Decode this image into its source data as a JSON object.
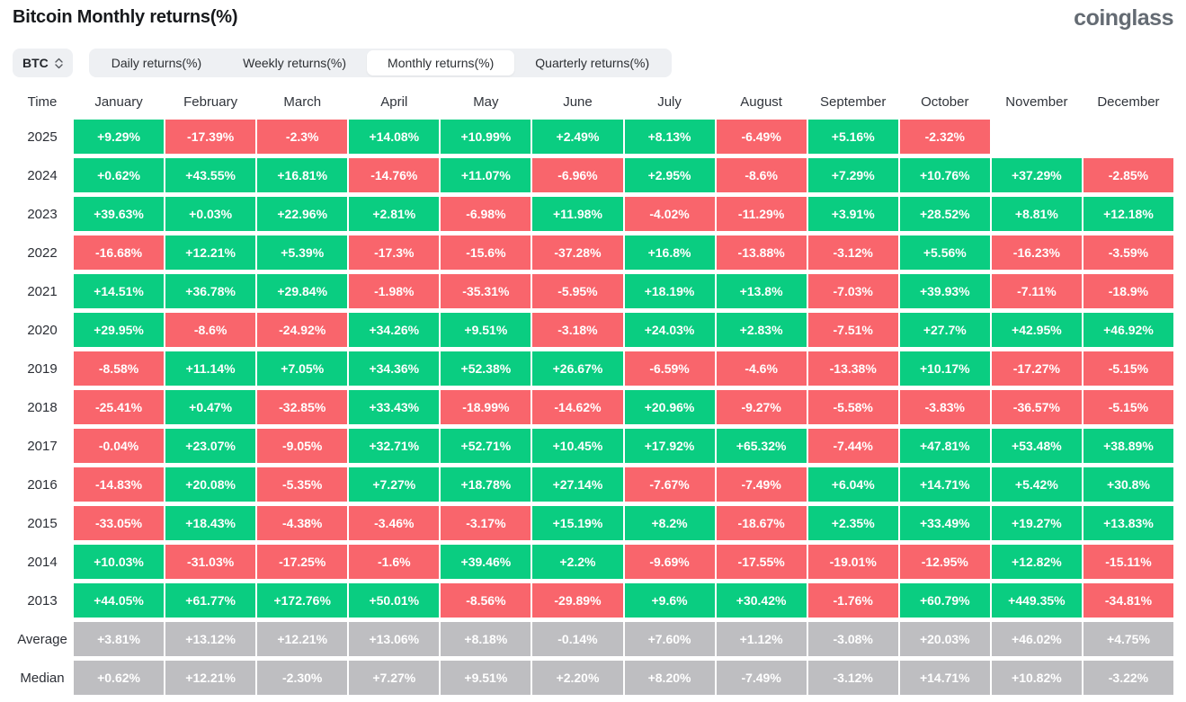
{
  "header": {
    "title": "Bitcoin Monthly returns(%)",
    "logo_text": "coinglass"
  },
  "controls": {
    "symbol_select": {
      "value": "BTC",
      "icon": "updown-chevron-icon"
    },
    "tabs": [
      {
        "label": "Daily returns(%)",
        "active": false
      },
      {
        "label": "Weekly returns(%)",
        "active": false
      },
      {
        "label": "Monthly returns(%)",
        "active": true
      },
      {
        "label": "Quarterly returns(%)",
        "active": false
      }
    ]
  },
  "colors": {
    "positive": "#0ACD81",
    "negative": "#F9656C",
    "neutral": "#BEBEC1",
    "tab_bg": "#EEF0F3",
    "logo": "#646B73"
  },
  "chart_data": {
    "type": "heatmap",
    "title": "Bitcoin Monthly returns(%)",
    "unit": "%",
    "columns": [
      "Time",
      "January",
      "February",
      "March",
      "April",
      "May",
      "June",
      "July",
      "August",
      "September",
      "October",
      "November",
      "December"
    ],
    "rows": [
      {
        "label": "2025",
        "kind": "year",
        "values": [
          "+9.29%",
          "-17.39%",
          "-2.3%",
          "+14.08%",
          "+10.99%",
          "+2.49%",
          "+8.13%",
          "-6.49%",
          "+5.16%",
          "-2.32%",
          "",
          ""
        ]
      },
      {
        "label": "2024",
        "kind": "year",
        "values": [
          "+0.62%",
          "+43.55%",
          "+16.81%",
          "-14.76%",
          "+11.07%",
          "-6.96%",
          "+2.95%",
          "-8.6%",
          "+7.29%",
          "+10.76%",
          "+37.29%",
          "-2.85%"
        ]
      },
      {
        "label": "2023",
        "kind": "year",
        "values": [
          "+39.63%",
          "+0.03%",
          "+22.96%",
          "+2.81%",
          "-6.98%",
          "+11.98%",
          "-4.02%",
          "-11.29%",
          "+3.91%",
          "+28.52%",
          "+8.81%",
          "+12.18%"
        ]
      },
      {
        "label": "2022",
        "kind": "year",
        "values": [
          "-16.68%",
          "+12.21%",
          "+5.39%",
          "-17.3%",
          "-15.6%",
          "-37.28%",
          "+16.8%",
          "-13.88%",
          "-3.12%",
          "+5.56%",
          "-16.23%",
          "-3.59%"
        ]
      },
      {
        "label": "2021",
        "kind": "year",
        "values": [
          "+14.51%",
          "+36.78%",
          "+29.84%",
          "-1.98%",
          "-35.31%",
          "-5.95%",
          "+18.19%",
          "+13.8%",
          "-7.03%",
          "+39.93%",
          "-7.11%",
          "-18.9%"
        ]
      },
      {
        "label": "2020",
        "kind": "year",
        "values": [
          "+29.95%",
          "-8.6%",
          "-24.92%",
          "+34.26%",
          "+9.51%",
          "-3.18%",
          "+24.03%",
          "+2.83%",
          "-7.51%",
          "+27.7%",
          "+42.95%",
          "+46.92%"
        ]
      },
      {
        "label": "2019",
        "kind": "year",
        "values": [
          "-8.58%",
          "+11.14%",
          "+7.05%",
          "+34.36%",
          "+52.38%",
          "+26.67%",
          "-6.59%",
          "-4.6%",
          "-13.38%",
          "+10.17%",
          "-17.27%",
          "-5.15%"
        ]
      },
      {
        "label": "2018",
        "kind": "year",
        "values": [
          "-25.41%",
          "+0.47%",
          "-32.85%",
          "+33.43%",
          "-18.99%",
          "-14.62%",
          "+20.96%",
          "-9.27%",
          "-5.58%",
          "-3.83%",
          "-36.57%",
          "-5.15%"
        ]
      },
      {
        "label": "2017",
        "kind": "year",
        "values": [
          "-0.04%",
          "+23.07%",
          "-9.05%",
          "+32.71%",
          "+52.71%",
          "+10.45%",
          "+17.92%",
          "+65.32%",
          "-7.44%",
          "+47.81%",
          "+53.48%",
          "+38.89%"
        ]
      },
      {
        "label": "2016",
        "kind": "year",
        "values": [
          "-14.83%",
          "+20.08%",
          "-5.35%",
          "+7.27%",
          "+18.78%",
          "+27.14%",
          "-7.67%",
          "-7.49%",
          "+6.04%",
          "+14.71%",
          "+5.42%",
          "+30.8%"
        ]
      },
      {
        "label": "2015",
        "kind": "year",
        "values": [
          "-33.05%",
          "+18.43%",
          "-4.38%",
          "-3.46%",
          "-3.17%",
          "+15.19%",
          "+8.2%",
          "-18.67%",
          "+2.35%",
          "+33.49%",
          "+19.27%",
          "+13.83%"
        ]
      },
      {
        "label": "2014",
        "kind": "year",
        "values": [
          "+10.03%",
          "-31.03%",
          "-17.25%",
          "-1.6%",
          "+39.46%",
          "+2.2%",
          "-9.69%",
          "-17.55%",
          "-19.01%",
          "-12.95%",
          "+12.82%",
          "-15.11%"
        ]
      },
      {
        "label": "2013",
        "kind": "year",
        "values": [
          "+44.05%",
          "+61.77%",
          "+172.76%",
          "+50.01%",
          "-8.56%",
          "-29.89%",
          "+9.6%",
          "+30.42%",
          "-1.76%",
          "+60.79%",
          "+449.35%",
          "-34.81%"
        ]
      },
      {
        "label": "Average",
        "kind": "summary",
        "values": [
          "+3.81%",
          "+13.12%",
          "+12.21%",
          "+13.06%",
          "+8.18%",
          "-0.14%",
          "+7.60%",
          "+1.12%",
          "-3.08%",
          "+20.03%",
          "+46.02%",
          "+4.75%"
        ]
      },
      {
        "label": "Median",
        "kind": "summary",
        "values": [
          "+0.62%",
          "+12.21%",
          "-2.30%",
          "+7.27%",
          "+9.51%",
          "+2.20%",
          "+8.20%",
          "-7.49%",
          "-3.12%",
          "+14.71%",
          "+10.82%",
          "-3.22%"
        ]
      }
    ]
  }
}
